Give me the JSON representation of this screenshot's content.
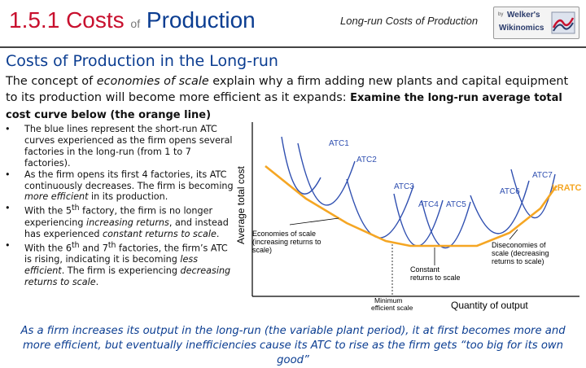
{
  "header": {
    "title_num": "1.5.1",
    "title_costs": "Costs",
    "title_of": "of",
    "title_production": "Production",
    "subtitle": "Long-run Costs of Production",
    "logo_by": "by",
    "logo_line1": "Welker's",
    "logo_line2": "Wikinomics"
  },
  "section_title": "Costs of Production in the Long-run",
  "intro": {
    "part1": "The concept of ",
    "term": "economies of scale",
    "part2": " explain why a firm adding new plants and capital equipment to its production will become more efficient as it expands: ",
    "bold": "Examine the long-run average total cost curve below (the orange line)"
  },
  "bullets": [
    {
      "a": "The blue lines represent the short-run ATC curves experienced as the firm opens several factories in the long-run (from 1 to 7 factories)."
    },
    {
      "a": "As the firm opens its first 4 factories, its ATC continuously decreases. The firm is becoming ",
      "em": "more efficient",
      "b": " in its production."
    },
    {
      "a": "With the 5",
      "sup": "th",
      "b": " factory, the firm is no longer experiencing ",
      "em": "increasing returns",
      "c": ", and instead has experienced ",
      "em2": "constant returns to scale",
      "d": "."
    },
    {
      "a": "With the 6",
      "sup": "th",
      "b": " and 7",
      "sup2": "th",
      "c": " factories, the firm’s ATC is rising, indicating it is becoming ",
      "em": "less efficient",
      "d": ". The firm is experiencing ",
      "em2": "decreasing returns to scale",
      "e": "."
    }
  ],
  "chart_data": {
    "type": "line",
    "ylabel": "Average total cost",
    "xlabel": "Quantity of output",
    "series": [
      {
        "name": "ATC1",
        "color": "#2f4fb0"
      },
      {
        "name": "ATC2",
        "color": "#2f4fb0"
      },
      {
        "name": "ATC3",
        "color": "#2f4fb0"
      },
      {
        "name": "ATC4",
        "color": "#2f4fb0"
      },
      {
        "name": "ATC5",
        "color": "#2f4fb0"
      },
      {
        "name": "ATC6",
        "color": "#2f4fb0"
      },
      {
        "name": "ATC7",
        "color": "#2f4fb0"
      },
      {
        "name": "LRATC",
        "color": "#f5a623"
      }
    ],
    "annotations": {
      "economies": [
        "Economies of scale",
        "(increasing returns to",
        "scale)"
      ],
      "constant": [
        "Constant",
        "returns to scale"
      ],
      "diseconomies": [
        "Diseconomies of",
        "scale (decreasing",
        "returns to scale)"
      ],
      "min_efficient": [
        "Minimum",
        "efficient scale"
      ]
    }
  },
  "conclusion": "As a firm increases its output in the long-run (the variable plant period), it at first becomes more and more efficient, but eventually inefficiencies cause its ATC to rise as the firm gets “too big for its own good”"
}
